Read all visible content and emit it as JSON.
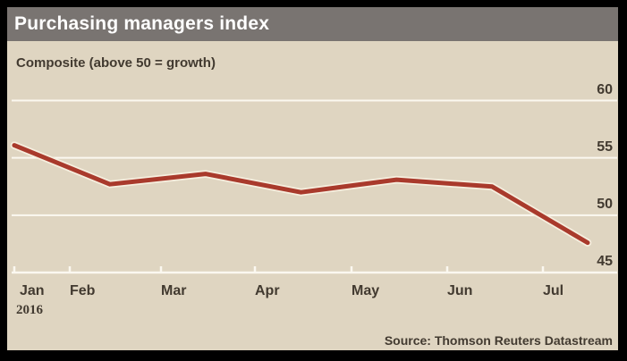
{
  "header": {
    "title": "Purchasing managers index"
  },
  "subtitle": "Composite (above 50 = growth)",
  "year_label": "2016",
  "source": "Source: Thomson Reuters Datastream",
  "colors": {
    "frame": "#000000",
    "header_bar": "#797471",
    "title_text": "#ffffff",
    "background": "#dfd5c1",
    "text_dark": "#423a30",
    "gridline": "#fbf8f0",
    "line": "#a93a2c",
    "line_casing": "#f6efdf"
  },
  "chart_data": {
    "type": "line",
    "title": "Purchasing managers index",
    "subtitle": "Composite (above 50 = growth)",
    "x": [
      "Jan",
      "Feb",
      "Mar",
      "Apr",
      "May",
      "Jun",
      "Jul"
    ],
    "x_year": "2016",
    "series": [
      {
        "name": "Composite PMI",
        "values": [
          56.1,
          52.7,
          53.6,
          52.0,
          53.1,
          52.5,
          47.6
        ]
      }
    ],
    "y_ticks": [
      60,
      55,
      50,
      45
    ],
    "ylim": [
      45,
      60
    ],
    "grid": true,
    "legend_position": "none",
    "annotation": "above 50 = growth",
    "source": "Source: Thomson Reuters Datastream"
  }
}
